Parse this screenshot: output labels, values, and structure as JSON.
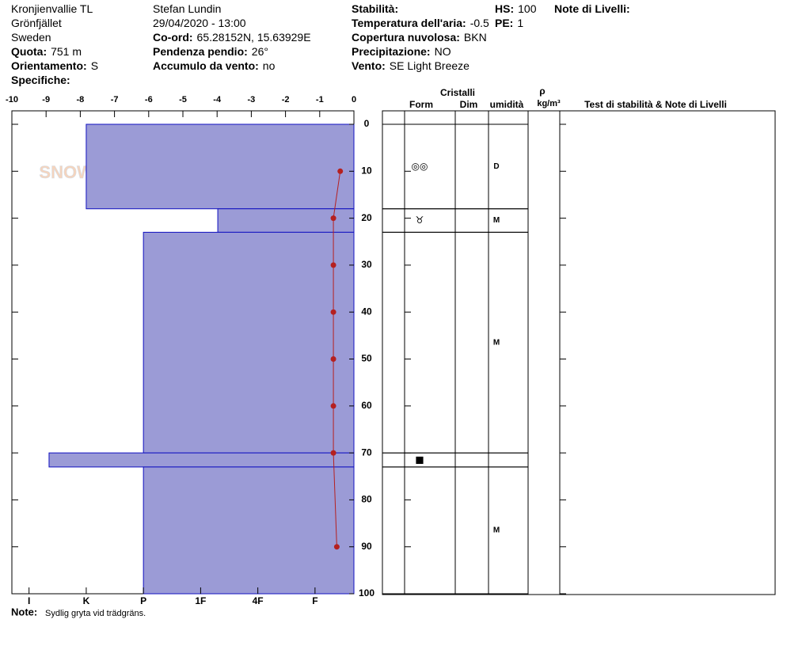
{
  "header": {
    "columns": [
      [
        {
          "value": "Kronjienvallie TL"
        },
        {
          "value": "Grönfjället"
        },
        {
          "value": "Sweden"
        },
        {
          "label": "Quota:",
          "value": "751 m"
        },
        {
          "label": "Orientamento:",
          "value": "S"
        },
        {
          "label": "Specifiche:"
        }
      ],
      [
        {
          "value": "Stefan Lundin"
        },
        {
          "value": "29/04/2020 - 13:00"
        },
        {
          "label": "Co-ord:",
          "value": "65.28152N, 15.63929E"
        },
        {
          "label": "Pendenza pendio:",
          "value": "26°"
        },
        {
          "label": "Accumulo da vento:",
          "value": "no"
        }
      ],
      [
        {
          "label": "Stabilità:"
        },
        {
          "label": "Temperatura dell'aria:",
          "value": "-0.5"
        },
        {
          "label": "Copertura nuvolosa:",
          "value": "BKN"
        },
        {
          "label": "Precipitazione:",
          "value": "NO"
        },
        {
          "label": "Vento:",
          "value": "SE Light Breeze"
        }
      ],
      [
        {
          "label": "HS:",
          "value": "100"
        },
        {
          "label": "PE:",
          "value": "1"
        }
      ],
      [
        {
          "label": "Note di Livelli:"
        }
      ]
    ]
  },
  "chart_data": {
    "type": "snow-profile",
    "watermark": "SNOWPILOT",
    "xlim": [
      -10,
      0
    ],
    "xticks": [
      -10,
      -9,
      -8,
      -7,
      -6,
      -5,
      -4,
      -3,
      -2,
      -1,
      0
    ],
    "ylim": [
      0,
      100
    ],
    "yticks": [
      0,
      10,
      20,
      30,
      40,
      50,
      60,
      70,
      80,
      90,
      100
    ],
    "hardness_lim": [
      0.7,
      6.68
    ],
    "hardness_ticks": [
      {
        "value": 1,
        "label": "I"
      },
      {
        "value": 2,
        "label": "K"
      },
      {
        "value": 3,
        "label": "P"
      },
      {
        "value": 4,
        "label": "1F"
      },
      {
        "value": 5,
        "label": "4F"
      },
      {
        "value": 6,
        "label": "F"
      }
    ],
    "layer_color": "#9b9bd6",
    "layers": [
      {
        "top": 0,
        "bottom": 18,
        "hardness": 2,
        "grain": "◎◎",
        "moisture": "D"
      },
      {
        "top": 18,
        "bottom": 23,
        "hardness": 4.3,
        "grain": "♉",
        "moisture": "M"
      },
      {
        "top": 23,
        "bottom": 70,
        "hardness": 3,
        "moisture": "M"
      },
      {
        "top": 70,
        "bottom": 73,
        "hardness": 1.35,
        "grain": "■"
      },
      {
        "top": 73,
        "bottom": 100,
        "hardness": 3,
        "moisture": "M"
      }
    ],
    "temperature": {
      "color": "#b52020",
      "depths": [
        10,
        20,
        30,
        40,
        50,
        60,
        70,
        90
      ],
      "values": [
        -0.4,
        -0.6,
        -0.6,
        -0.6,
        -0.6,
        -0.6,
        -0.6,
        -0.5
      ]
    },
    "table_headers": {
      "crystals": "Cristalli",
      "form": "Form",
      "size": "Dim",
      "moisture": "umidità",
      "density": "ρ",
      "density_unit": "kg/m³",
      "tests": "Test di stabilità & Note di Livelli"
    },
    "note": {
      "label": "Note:",
      "value": "Sydlig gryta vid trädgräns."
    }
  }
}
